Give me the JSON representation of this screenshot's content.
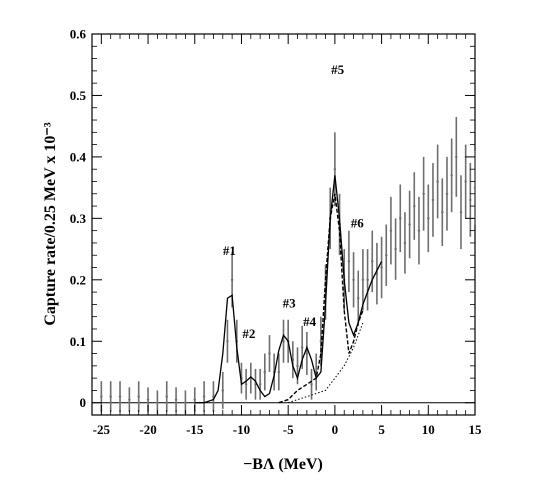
{
  "chart_data": {
    "type": "line",
    "title": "",
    "xlabel": "−BΛ (MeV)",
    "ylabel": "Capture rate/0.25 MeV x 10⁻³",
    "xlim": [
      -26,
      15
    ],
    "ylim": [
      -0.02,
      0.6
    ],
    "x_ticks": [
      -25,
      -20,
      -15,
      -10,
      -5,
      0,
      5,
      10,
      15
    ],
    "y_ticks": [
      0,
      0.1,
      0.2,
      0.3,
      0.4,
      0.5,
      0.6
    ],
    "x_tick_labels": [
      "-25",
      "-20",
      "-15",
      "-10",
      "-5",
      "0",
      "5",
      "10",
      "15"
    ],
    "y_tick_labels": [
      "0",
      "0.1",
      "0.2",
      "0.3",
      "0.4",
      "0.5",
      "0.6"
    ],
    "grid": false,
    "series": [
      {
        "kind": "histogram",
        "color": "#6e6e6e",
        "bin_width": 0.25,
        "x": [
          -25,
          -24,
          -23,
          -22,
          -21,
          -20,
          -19,
          -18,
          -17,
          -16,
          -15,
          -14,
          -13,
          -12,
          -11.5,
          -11,
          -10.5,
          -10,
          -9.5,
          -9,
          -8.5,
          -8,
          -7.5,
          -7,
          -6.5,
          -6,
          -5.5,
          -5,
          -4.5,
          -4,
          -3.5,
          -3,
          -2.5,
          -2,
          -1.5,
          -1,
          -0.5,
          0,
          0.5,
          1,
          1.5,
          2,
          2.5,
          3,
          3.5,
          4,
          4.5,
          5,
          5.5,
          6,
          6.5,
          7,
          7.5,
          8,
          8.5,
          9,
          9.5,
          10,
          10.5,
          11,
          11.5,
          12,
          12.5,
          13,
          13.5,
          14,
          14.5,
          15
        ],
        "y": [
          0.01,
          0.01,
          0.01,
          0.005,
          0.01,
          0.005,
          0.0,
          0.01,
          0.005,
          0.0,
          0.005,
          0.01,
          0.01,
          0.02,
          0.1,
          0.2,
          0.1,
          0.04,
          0.03,
          0.04,
          0.03,
          0.03,
          0.05,
          0.08,
          0.05,
          0.05,
          0.1,
          0.1,
          0.07,
          0.06,
          0.09,
          0.08,
          0.03,
          0.05,
          0.1,
          0.18,
          0.3,
          0.38,
          0.29,
          0.2,
          0.23,
          0.2,
          0.17,
          0.2,
          0.2,
          0.23,
          0.21,
          0.22,
          0.24,
          0.28,
          0.25,
          0.3,
          0.26,
          0.29,
          0.32,
          0.28,
          0.34,
          0.3,
          0.33,
          0.36,
          0.31,
          0.34,
          0.37,
          0.4,
          0.31,
          0.36,
          0.33,
          0.35
        ],
        "err": [
          0.025,
          0.025,
          0.025,
          0.02,
          0.025,
          0.02,
          0.02,
          0.025,
          0.02,
          0.02,
          0.02,
          0.025,
          0.025,
          0.03,
          0.035,
          0.045,
          0.035,
          0.025,
          0.025,
          0.025,
          0.025,
          0.025,
          0.03,
          0.03,
          0.03,
          0.03,
          0.035,
          0.035,
          0.03,
          0.03,
          0.035,
          0.035,
          0.025,
          0.03,
          0.04,
          0.045,
          0.05,
          0.06,
          0.05,
          0.05,
          0.05,
          0.045,
          0.045,
          0.05,
          0.05,
          0.05,
          0.05,
          0.05,
          0.05,
          0.055,
          0.05,
          0.055,
          0.05,
          0.055,
          0.055,
          0.055,
          0.06,
          0.055,
          0.06,
          0.06,
          0.055,
          0.06,
          0.06,
          0.065,
          0.06,
          0.06,
          0.06,
          0.06
        ]
      },
      {
        "kind": "fit",
        "style": "solid",
        "color": "#000000",
        "x": [
          -15,
          -14,
          -13,
          -12.5,
          -12,
          -11.5,
          -11,
          -10.5,
          -10,
          -9.5,
          -9,
          -8.5,
          -8,
          -7.5,
          -7,
          -6.5,
          -6,
          -5.5,
          -5,
          -4.5,
          -4,
          -3.5,
          -3,
          -2.5,
          -2,
          -1.5,
          -1,
          -0.5,
          0,
          0.5,
          1,
          1.5,
          2,
          2.5,
          3,
          4,
          5
        ],
        "y": [
          0.0,
          0.0,
          0.005,
          0.02,
          0.08,
          0.17,
          0.175,
          0.09,
          0.03,
          0.035,
          0.042,
          0.035,
          0.02,
          0.01,
          0.015,
          0.045,
          0.085,
          0.11,
          0.1,
          0.06,
          0.04,
          0.07,
          0.09,
          0.07,
          0.04,
          0.05,
          0.16,
          0.3,
          0.37,
          0.3,
          0.2,
          0.13,
          0.11,
          0.13,
          0.16,
          0.2,
          0.23
        ]
      },
      {
        "kind": "component",
        "style": "dashed",
        "color": "#000000",
        "x": [
          -6,
          -5,
          -4,
          -3,
          -2,
          -1.5,
          -1,
          -0.5,
          0,
          0.5,
          1,
          1.5,
          2,
          2.5,
          3
        ],
        "y": [
          0.0,
          0.005,
          0.02,
          0.03,
          0.04,
          0.08,
          0.2,
          0.3,
          0.34,
          0.28,
          0.15,
          0.08,
          0.1,
          0.13,
          0.15
        ]
      },
      {
        "kind": "component",
        "style": "dotted",
        "color": "#000000",
        "x": [
          -5,
          -4,
          -3,
          -2,
          -1,
          0,
          1,
          2,
          3
        ],
        "y": [
          0.0,
          0.005,
          0.01,
          0.015,
          0.02,
          0.04,
          0.06,
          0.09,
          0.13
        ]
      }
    ],
    "annotations": [
      {
        "text": "#1",
        "x": -11.3,
        "y": 0.24
      },
      {
        "text": "#2",
        "x": -9.2,
        "y": 0.105
      },
      {
        "text": "#3",
        "x": -4.9,
        "y": 0.155
      },
      {
        "text": "#4",
        "x": -2.7,
        "y": 0.125
      },
      {
        "text": "#5",
        "x": 0.3,
        "y": 0.535
      },
      {
        "text": "#6",
        "x": 2.4,
        "y": 0.285
      }
    ]
  }
}
